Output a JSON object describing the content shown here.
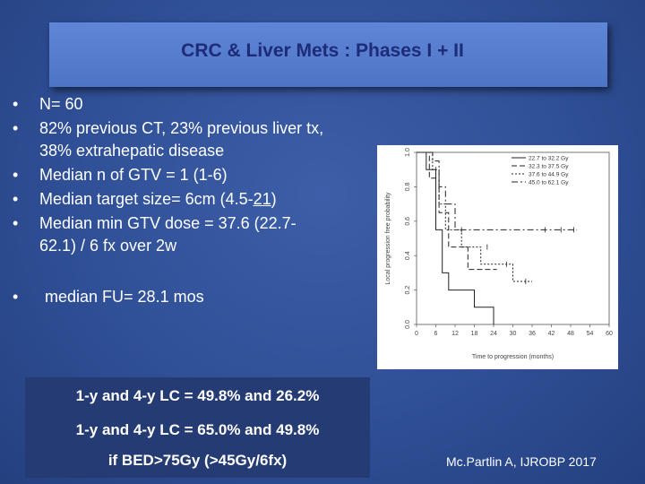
{
  "slide": {
    "title": "CRC & Liver Mets : Phases I + II",
    "bullets": [
      {
        "symbol": "•",
        "text": "N= 60"
      },
      {
        "symbol": "•",
        "text": "82% previous CT, 23% previous liver tx,",
        "text2": "38% extrahepatic disease"
      },
      {
        "symbol": "•",
        "text": "Median n of GTV = 1 (1-6)"
      },
      {
        "symbol": "•",
        "text_before": "Median target size= 6cm (4.5-",
        "text_underlined": "21",
        "text_after": ")"
      },
      {
        "symbol": "•",
        "text": "Median min GTV dose = 37.6 (22.7-",
        "text2": "62.1) / 6 fx over 2w"
      },
      {
        "symbol": "•",
        "text": "median FU= 28.1 mos"
      }
    ],
    "results": {
      "line1": "1-y and 4-y LC = 49.8% and 26.2%",
      "line2": "1-y and 4-y LC = 65.0% and 49.8%",
      "line3": "if BED>75Gy (>45Gy/6fx)"
    },
    "citation": "Mc.Partlin A, IJROBP 2017"
  },
  "chart_data": {
    "type": "line",
    "xlabel": "Time to progression (months)",
    "ylabel": "Local progression free probability",
    "xlim": [
      0,
      60
    ],
    "ylim": [
      0,
      1
    ],
    "xticks": [
      "0",
      "6",
      "12",
      "18",
      "24",
      "30",
      "36",
      "42",
      "48",
      "54",
      "60"
    ],
    "yticks": [
      "0.0",
      "0.2",
      "0.4",
      "0.6",
      "0.8",
      "1.0"
    ],
    "legend_position": "top-right",
    "series": [
      {
        "name": "22.7 to 32.2 Gy",
        "dash": "solid",
        "points": [
          [
            0,
            1.0
          ],
          [
            3,
            1.0
          ],
          [
            3,
            0.9
          ],
          [
            6,
            0.9
          ],
          [
            6,
            0.55
          ],
          [
            8,
            0.55
          ],
          [
            8,
            0.3
          ],
          [
            10,
            0.3
          ],
          [
            10,
            0.2
          ],
          [
            18,
            0.2
          ],
          [
            18,
            0.1
          ],
          [
            24,
            0.1
          ],
          [
            24,
            0.0
          ]
        ]
      },
      {
        "name": "32.3 to 37.5 Gy",
        "dash": "6,3",
        "points": [
          [
            0,
            1.0
          ],
          [
            4,
            1.0
          ],
          [
            4,
            0.85
          ],
          [
            7,
            0.85
          ],
          [
            7,
            0.65
          ],
          [
            10,
            0.65
          ],
          [
            10,
            0.45
          ],
          [
            16,
            0.45
          ],
          [
            16,
            0.32
          ],
          [
            25,
            0.32
          ],
          [
            25,
            0.32
          ]
        ]
      },
      {
        "name": "37.6 to 44.9 Gy",
        "dash": "2,2",
        "points": [
          [
            0,
            1.0
          ],
          [
            5,
            1.0
          ],
          [
            5,
            0.9
          ],
          [
            7,
            0.9
          ],
          [
            7,
            0.7
          ],
          [
            9,
            0.7
          ],
          [
            9,
            0.55
          ],
          [
            14,
            0.55
          ],
          [
            14,
            0.45
          ],
          [
            20,
            0.45
          ],
          [
            20,
            0.35
          ],
          [
            30,
            0.35
          ],
          [
            30,
            0.25
          ],
          [
            36,
            0.25
          ]
        ]
      },
      {
        "name": "45.0 to 62.1 Gy",
        "dash": "7,3,2,3",
        "points": [
          [
            0,
            1.0
          ],
          [
            5,
            1.0
          ],
          [
            5,
            0.95
          ],
          [
            7,
            0.95
          ],
          [
            7,
            0.8
          ],
          [
            9,
            0.8
          ],
          [
            9,
            0.7
          ],
          [
            12,
            0.7
          ],
          [
            12,
            0.55
          ],
          [
            50,
            0.55
          ]
        ]
      }
    ],
    "censor_marks": [
      [
        6,
        0.9
      ],
      [
        14,
        0.55
      ],
      [
        22,
        0.45
      ],
      [
        28,
        0.35
      ],
      [
        34,
        0.25
      ],
      [
        40,
        0.55
      ],
      [
        45,
        0.55
      ],
      [
        49,
        0.55
      ]
    ]
  }
}
